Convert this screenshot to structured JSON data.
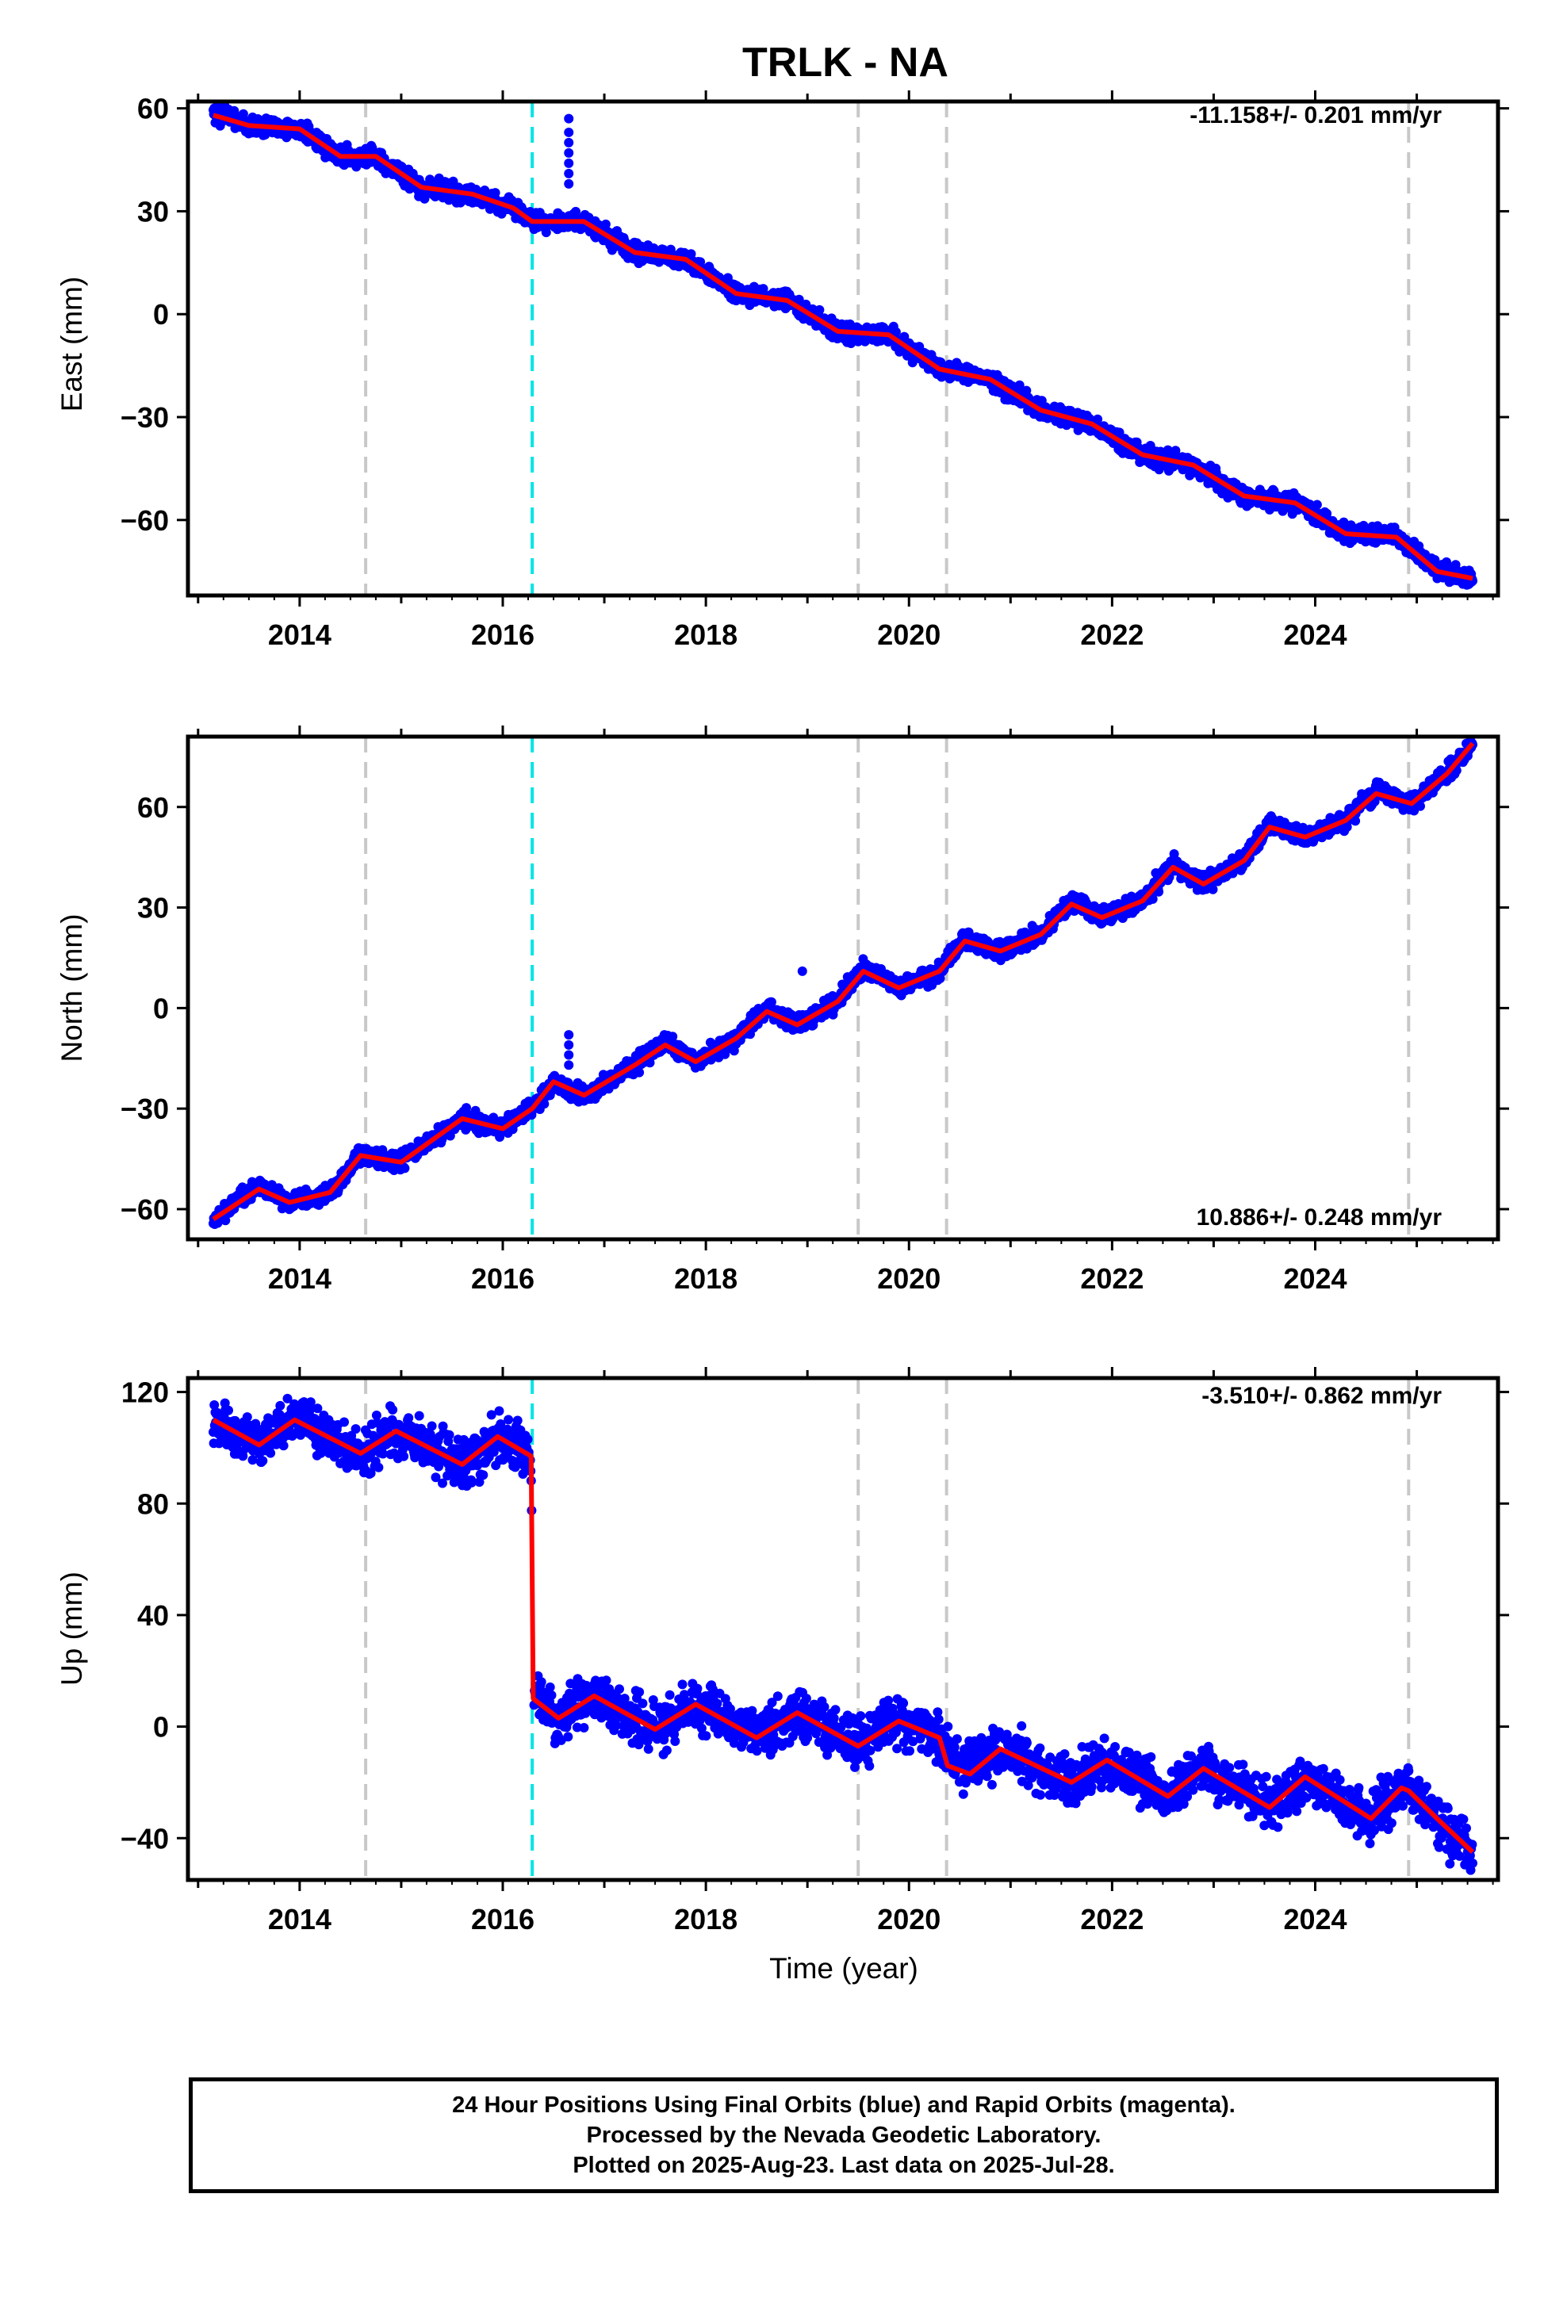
{
  "title": "TRLK - NA",
  "colors": {
    "data_points": "#0000ff",
    "model_fit": "#ff0000",
    "equipment_change": "#c8c8c8",
    "earthquake": "#00e5e5"
  },
  "xlabel": "Time (year)",
  "panels": [
    {
      "ylabel": "East (mm)",
      "rate_label": "-11.158+/- 0.201 mm/yr",
      "rate_position": "top-right",
      "ylim": [
        -82,
        62
      ],
      "yticks": [
        60,
        30,
        0,
        -30,
        -60
      ],
      "ytick_labels": [
        "60",
        "30",
        "0",
        "−30",
        "−60"
      ]
    },
    {
      "ylabel": "North (mm)",
      "rate_label": "10.886+/- 0.248 mm/yr",
      "rate_position": "bottom-right",
      "ylim": [
        -69,
        81
      ],
      "yticks": [
        60,
        30,
        0,
        -30,
        -60
      ],
      "ytick_labels": [
        "60",
        "30",
        "0",
        "−30",
        "−60"
      ]
    },
    {
      "ylabel": "Up (mm)",
      "rate_label": "-3.510+/- 0.862 mm/yr",
      "rate_position": "top-right",
      "ylim": [
        -55,
        125
      ],
      "yticks": [
        120,
        80,
        40,
        0,
        -40
      ],
      "ytick_labels": [
        "120",
        "80",
        "40",
        "0",
        "−40"
      ]
    }
  ],
  "caption": {
    "line1": "24 Hour Positions Using Final Orbits (blue) and Rapid Orbits (magenta).",
    "line2": "Processed by the Nevada Geodetic Laboratory.",
    "line3": "Plotted on 2025-Aug-23. Last data on 2025-Jul-28."
  },
  "chart_data": [
    {
      "type": "scatter",
      "title": "TRLK - NA",
      "xlabel": "",
      "ylabel": "East (mm)",
      "xlim": [
        2012.9,
        2025.8
      ],
      "ylim": [
        -82,
        62
      ],
      "xticks": [
        2014,
        2016,
        2018,
        2020,
        2022,
        2024
      ],
      "xtick_labels": [
        "2014",
        "2016",
        "2018",
        "2020",
        "2022",
        "2024"
      ],
      "yticks": [
        60,
        30,
        0,
        -30,
        -60
      ],
      "ytick_labels": [
        "60",
        "30",
        "0",
        "−30",
        "−60"
      ],
      "annotation": "-11.158+/- 0.201 mm/yr",
      "grid": false,
      "vlines": [
        {
          "x": 2014.65,
          "style": "dashed",
          "color": "#c8c8c8"
        },
        {
          "x": 2016.29,
          "style": "dashed",
          "color": "#00e5e5"
        },
        {
          "x": 2019.5,
          "style": "dashed",
          "color": "#c8c8c8"
        },
        {
          "x": 2020.37,
          "style": "dashed",
          "color": "#c8c8c8"
        },
        {
          "x": 2024.92,
          "style": "dashed",
          "color": "#c8c8c8"
        }
      ],
      "series": [
        {
          "type": "scatter",
          "x": [
            2013.15,
            2013.5,
            2014.0,
            2014.4,
            2014.75,
            2015.2,
            2015.7,
            2016.1,
            2016.29,
            2016.8,
            2017.3,
            2017.8,
            2018.3,
            2018.8,
            2019.3,
            2019.8,
            2020.3,
            2020.8,
            2021.3,
            2021.8,
            2022.3,
            2022.8,
            2023.3,
            2023.8,
            2024.3,
            2024.8,
            2025.2,
            2025.55
          ],
          "y": [
            59,
            55,
            54,
            46,
            46,
            37,
            35,
            31,
            27,
            27,
            18,
            16,
            6,
            4,
            -5,
            -6,
            -16,
            -19,
            -28,
            -32,
            -41,
            -44,
            -53,
            -55,
            -64,
            -65,
            -75,
            -77
          ]
        },
        {
          "type": "line",
          "x": [
            2013.15,
            2013.5,
            2014.0,
            2014.4,
            2014.75,
            2015.2,
            2015.7,
            2016.1,
            2016.29,
            2016.8,
            2017.3,
            2017.8,
            2018.3,
            2018.8,
            2019.3,
            2019.8,
            2020.3,
            2020.8,
            2021.3,
            2021.8,
            2022.3,
            2022.8,
            2023.3,
            2023.8,
            2024.3,
            2024.8,
            2025.2,
            2025.55
          ],
          "y": [
            58,
            55,
            54,
            46,
            46,
            37,
            35,
            31,
            27,
            27,
            18,
            16,
            6,
            4,
            -5,
            -6,
            -16,
            -19,
            -28,
            -32,
            -41,
            -44,
            -53,
            -55,
            -64,
            -65,
            -75,
            -77
          ]
        },
        {
          "type": "outliers",
          "x": [
            2016.65,
            2016.65,
            2016.65,
            2016.65,
            2016.65,
            2016.65,
            2016.65
          ],
          "y": [
            57,
            53,
            50,
            47,
            44,
            41,
            38
          ]
        }
      ]
    },
    {
      "type": "scatter",
      "title": "",
      "xlabel": "",
      "ylabel": "North (mm)",
      "xlim": [
        2012.9,
        2025.8
      ],
      "ylim": [
        -69,
        81
      ],
      "xticks": [
        2014,
        2016,
        2018,
        2020,
        2022,
        2024
      ],
      "xtick_labels": [
        "2014",
        "2016",
        "2018",
        "2020",
        "2022",
        "2024"
      ],
      "yticks": [
        60,
        30,
        0,
        -30,
        -60
      ],
      "ytick_labels": [
        "60",
        "30",
        "0",
        "−30",
        "−60"
      ],
      "annotation": "10.886+/- 0.248 mm/yr",
      "grid": false,
      "vlines": [
        {
          "x": 2014.65,
          "style": "dashed",
          "color": "#c8c8c8"
        },
        {
          "x": 2016.29,
          "style": "dashed",
          "color": "#00e5e5"
        },
        {
          "x": 2019.5,
          "style": "dashed",
          "color": "#c8c8c8"
        },
        {
          "x": 2020.37,
          "style": "dashed",
          "color": "#c8c8c8"
        },
        {
          "x": 2024.92,
          "style": "dashed",
          "color": "#c8c8c8"
        }
      ],
      "series": [
        {
          "type": "scatter",
          "x": [
            2013.15,
            2013.3,
            2013.6,
            2013.9,
            2014.3,
            2014.6,
            2015.0,
            2015.6,
            2016.0,
            2016.29,
            2016.5,
            2016.8,
            2017.3,
            2017.6,
            2017.9,
            2018.3,
            2018.6,
            2018.9,
            2019.3,
            2019.55,
            2019.9,
            2020.3,
            2020.55,
            2020.9,
            2021.3,
            2021.6,
            2021.9,
            2022.3,
            2022.6,
            2022.9,
            2023.3,
            2023.55,
            2023.9,
            2024.3,
            2024.6,
            2024.95,
            2025.3,
            2025.55
          ],
          "y": [
            -64,
            -60,
            -53,
            -58,
            -55,
            -44,
            -46,
            -33,
            -36,
            -30,
            -22,
            -26,
            -17,
            -10,
            -16,
            -9,
            0,
            -5,
            2,
            12,
            6,
            11,
            21,
            17,
            22,
            32,
            27,
            32,
            43,
            37,
            44,
            55,
            51,
            56,
            65,
            61,
            70,
            79
          ]
        },
        {
          "type": "line",
          "x": [
            2013.15,
            2013.3,
            2013.6,
            2013.9,
            2014.3,
            2014.6,
            2015.0,
            2015.6,
            2016.0,
            2016.29,
            2016.5,
            2016.8,
            2017.3,
            2017.6,
            2017.9,
            2018.3,
            2018.6,
            2018.9,
            2019.3,
            2019.55,
            2019.9,
            2020.3,
            2020.55,
            2020.9,
            2021.3,
            2021.6,
            2021.9,
            2022.3,
            2022.6,
            2022.9,
            2023.3,
            2023.55,
            2023.9,
            2024.3,
            2024.6,
            2024.95,
            2025.3,
            2025.55
          ],
          "y": [
            -63,
            -60,
            -54,
            -58,
            -55,
            -44,
            -46,
            -33,
            -36,
            -30,
            -22,
            -26,
            -17,
            -11,
            -16,
            -9,
            -1,
            -5,
            2,
            11,
            6,
            11,
            20,
            17,
            22,
            31,
            27,
            32,
            42,
            37,
            44,
            54,
            51,
            56,
            64,
            61,
            70,
            79
          ]
        },
        {
          "type": "outliers",
          "x": [
            2016.65,
            2016.65,
            2016.65,
            2016.65,
            2018.95
          ],
          "y": [
            -8,
            -11,
            -14,
            -17,
            11
          ]
        }
      ]
    },
    {
      "type": "scatter",
      "title": "",
      "xlabel": "Time (year)",
      "ylabel": "Up (mm)",
      "xlim": [
        2012.9,
        2025.8
      ],
      "ylim": [
        -55,
        125
      ],
      "xticks": [
        2014,
        2016,
        2018,
        2020,
        2022,
        2024
      ],
      "xtick_labels": [
        "2014",
        "2016",
        "2018",
        "2020",
        "2022",
        "2024"
      ],
      "yticks": [
        120,
        80,
        40,
        0,
        -40
      ],
      "ytick_labels": [
        "120",
        "80",
        "40",
        "0",
        "−40"
      ],
      "annotation": "-3.510+/- 0.862 mm/yr",
      "grid": false,
      "vlines": [
        {
          "x": 2014.65,
          "style": "dashed",
          "color": "#c8c8c8"
        },
        {
          "x": 2016.29,
          "style": "dashed",
          "color": "#00e5e5"
        },
        {
          "x": 2019.5,
          "style": "dashed",
          "color": "#c8c8c8"
        },
        {
          "x": 2020.37,
          "style": "dashed",
          "color": "#c8c8c8"
        },
        {
          "x": 2024.92,
          "style": "dashed",
          "color": "#c8c8c8"
        }
      ],
      "series": [
        {
          "type": "scatter",
          "x": [
            2013.15,
            2013.6,
            2013.95,
            2014.6,
            2014.95,
            2015.6,
            2015.95,
            2016.28,
            2016.3,
            2016.55,
            2016.9,
            2017.5,
            2017.9,
            2018.5,
            2018.9,
            2019.5,
            2019.9,
            2020.3,
            2020.5,
            2020.9,
            2021.6,
            2021.95,
            2022.55,
            2022.9,
            2023.55,
            2023.9,
            2024.55,
            2024.9,
            2025.2,
            2025.55
          ],
          "y": [
            109,
            101,
            111,
            97,
            106,
            94,
            104,
            97,
            10,
            2,
            12,
            -2,
            8,
            -3,
            5,
            -6,
            2,
            -4,
            -16,
            -8,
            -20,
            -12,
            -25,
            -15,
            -29,
            -18,
            -33,
            -22,
            -34,
            -45
          ]
        },
        {
          "type": "line",
          "x": [
            2013.15,
            2013.6,
            2013.95,
            2014.6,
            2014.95,
            2015.6,
            2015.95,
            2016.28,
            2016.3,
            2016.55,
            2016.9,
            2017.5,
            2017.9,
            2018.5,
            2018.9,
            2019.5,
            2019.9,
            2020.3,
            2020.38,
            2020.6,
            2020.9,
            2021.6,
            2021.95,
            2022.55,
            2022.9,
            2023.55,
            2023.9,
            2024.55,
            2024.85,
            2024.92,
            2025.2,
            2025.55
          ],
          "y": [
            110,
            101,
            110,
            98,
            106,
            94,
            104,
            97,
            10,
            3,
            11,
            -1,
            8,
            -4,
            5,
            -7,
            2,
            -4,
            -14,
            -17,
            -8,
            -20,
            -12,
            -25,
            -15,
            -29,
            -18,
            -33,
            -22,
            -23,
            -33,
            -45
          ]
        }
      ]
    }
  ]
}
